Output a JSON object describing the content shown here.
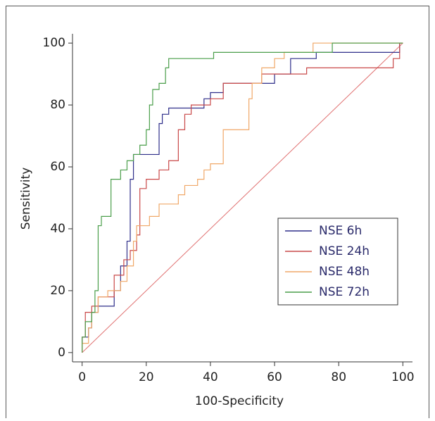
{
  "chart_data": {
    "type": "line",
    "x_label": "100-Specificity",
    "y_label": "Sensitivity",
    "xlim": [
      -3,
      103
    ],
    "ylim": [
      -3,
      103
    ],
    "xticks": [
      0,
      20,
      40,
      60,
      80,
      100
    ],
    "yticks": [
      0,
      20,
      40,
      60,
      80,
      100
    ],
    "legend": "lower right",
    "reference_line": {
      "x": [
        0,
        100
      ],
      "values": [
        0,
        100
      ],
      "color": "#e07070"
    },
    "series": [
      {
        "name": "NSE 6h",
        "color": "#2e2e8a",
        "x": [
          0,
          0,
          2,
          2,
          3,
          3,
          5,
          5,
          10,
          10,
          12,
          12,
          14,
          14,
          15,
          15,
          16,
          16,
          24,
          24,
          25,
          25,
          27,
          27,
          38,
          38,
          40,
          40,
          44,
          44,
          60,
          60,
          65,
          65,
          73,
          73,
          99,
          99,
          100
        ],
        "values": [
          0,
          5,
          5,
          8,
          8,
          13,
          13,
          15,
          15,
          20,
          20,
          28,
          28,
          36,
          36,
          56,
          56,
          64,
          64,
          74,
          74,
          77,
          77,
          79,
          79,
          82,
          82,
          84,
          84,
          87,
          87,
          90,
          90,
          95,
          95,
          97,
          97,
          100,
          100
        ]
      },
      {
        "name": "NSE 24h",
        "color": "#c94848",
        "x": [
          0,
          0,
          1,
          1,
          3,
          3,
          5,
          5,
          10,
          10,
          13,
          13,
          15,
          15,
          17,
          17,
          18,
          18,
          20,
          20,
          24,
          24,
          27,
          27,
          30,
          30,
          32,
          32,
          34,
          34,
          40,
          40,
          44,
          44,
          56,
          56,
          70,
          70,
          97,
          97,
          99,
          99,
          100
        ],
        "values": [
          0,
          5,
          5,
          13,
          13,
          15,
          15,
          18,
          18,
          25,
          25,
          30,
          30,
          33,
          33,
          38,
          38,
          53,
          53,
          56,
          56,
          59,
          59,
          62,
          62,
          72,
          72,
          77,
          77,
          80,
          80,
          82,
          82,
          87,
          87,
          90,
          90,
          92,
          92,
          95,
          95,
          100,
          100
        ]
      },
      {
        "name": "NSE 48h",
        "color": "#f0a868",
        "x": [
          0,
          0,
          2,
          2,
          3,
          3,
          5,
          5,
          8,
          8,
          12,
          12,
          14,
          14,
          16,
          16,
          17,
          17,
          21,
          21,
          24,
          24,
          30,
          30,
          32,
          32,
          36,
          36,
          38,
          38,
          40,
          40,
          44,
          44,
          52,
          52,
          53,
          53,
          56,
          56,
          60,
          60,
          63,
          63,
          72,
          72,
          100
        ],
        "values": [
          0,
          3,
          3,
          8,
          8,
          13,
          13,
          18,
          18,
          20,
          20,
          23,
          23,
          28,
          28,
          36,
          36,
          41,
          41,
          44,
          44,
          48,
          48,
          51,
          51,
          54,
          54,
          56,
          56,
          59,
          59,
          61,
          61,
          72,
          72,
          82,
          82,
          87,
          87,
          92,
          92,
          95,
          95,
          97,
          97,
          100,
          100
        ]
      },
      {
        "name": "NSE 72h",
        "color": "#4a9e4a",
        "x": [
          0,
          0,
          1,
          1,
          3,
          3,
          4,
          4,
          5,
          5,
          6,
          6,
          9,
          9,
          12,
          12,
          14,
          14,
          16,
          16,
          18,
          18,
          20,
          20,
          21,
          21,
          22,
          22,
          24,
          24,
          26,
          26,
          27,
          27,
          41,
          41,
          78,
          78,
          100
        ],
        "values": [
          0,
          5,
          5,
          10,
          10,
          13,
          13,
          20,
          20,
          41,
          41,
          44,
          44,
          56,
          56,
          59,
          59,
          62,
          62,
          64,
          64,
          67,
          67,
          72,
          72,
          80,
          80,
          85,
          85,
          87,
          87,
          92,
          92,
          95,
          95,
          97,
          97,
          100,
          100
        ]
      }
    ]
  }
}
